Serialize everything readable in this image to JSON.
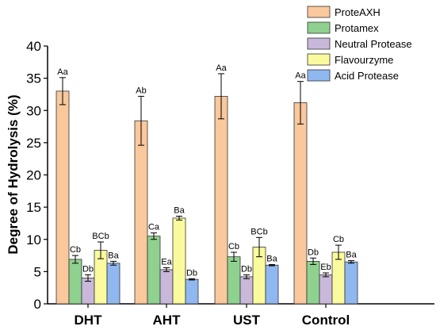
{
  "chart_data": {
    "type": "bar",
    "title": "",
    "xlabel": "",
    "ylabel": "Degree of Hydrolysis (%)",
    "ylim": [
      0,
      40
    ],
    "yticks": [
      0,
      5,
      10,
      15,
      20,
      25,
      30,
      35,
      40
    ],
    "categories": [
      "DHT",
      "AHT",
      "UST",
      "Control"
    ],
    "legend_position": "top-right",
    "grid": false,
    "series": [
      {
        "name": "ProteAXH",
        "color": "#f9c89c",
        "values": [
          33.0,
          28.4,
          32.2,
          31.2
        ],
        "errors": [
          2.1,
          3.8,
          3.5,
          3.3
        ],
        "labels": [
          "Aa",
          "Ab",
          "Aa",
          "Aa"
        ]
      },
      {
        "name": "Protamex",
        "color": "#8fd18f",
        "values": [
          6.9,
          10.5,
          7.3,
          6.6
        ],
        "errors": [
          0.6,
          0.5,
          0.7,
          0.5
        ],
        "labels": [
          "Cb",
          "Ca",
          "Cb",
          "Db"
        ]
      },
      {
        "name": "Neutral Protease",
        "color": "#c9b8da",
        "values": [
          4.0,
          5.3,
          4.2,
          4.5
        ],
        "errors": [
          0.5,
          0.3,
          0.3,
          0.3
        ],
        "labels": [
          "Db",
          "Ea",
          "Db",
          "Eb"
        ]
      },
      {
        "name": "Flavourzyme",
        "color": "#fafa9e",
        "values": [
          8.3,
          13.3,
          8.8,
          8.0
        ],
        "errors": [
          1.3,
          0.3,
          1.5,
          1.1
        ],
        "labels": [
          "BCb",
          "Ba",
          "BCb",
          "Cb"
        ]
      },
      {
        "name": "Acid Protease",
        "color": "#90b8f0",
        "values": [
          6.3,
          3.8,
          6.0,
          6.5
        ],
        "errors": [
          0.3,
          0.1,
          0.1,
          0.2
        ],
        "labels": [
          "Ba",
          "Db",
          "Ba",
          "Ba"
        ]
      }
    ]
  }
}
